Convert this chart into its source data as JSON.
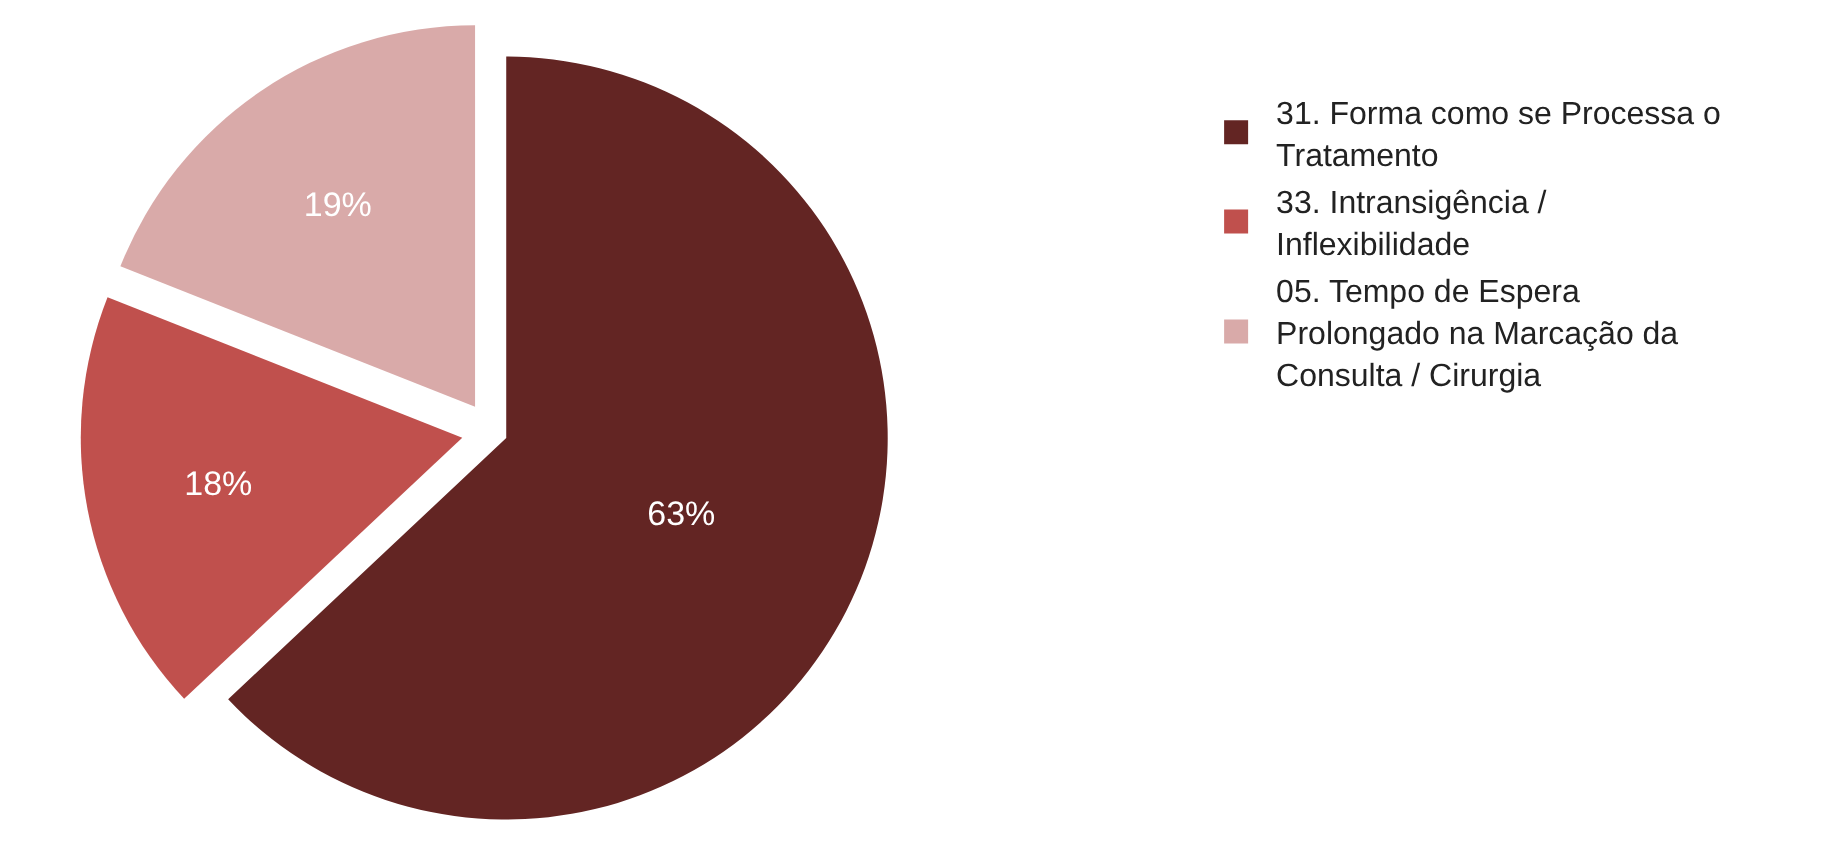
{
  "chart_data": {
    "type": "pie",
    "categories": [
      "31. Forma como se Processa o Tratamento",
      "33. Intransigência / Inflexibilidade",
      "05. Tempo de Espera Prolongado na Marcação da Consulta / Cirurgia"
    ],
    "values": [
      63,
      18,
      19
    ],
    "colors": [
      "#632523",
      "#c0504d",
      "#d9aaa9"
    ],
    "value_labels": [
      "63%",
      "18%",
      "19%"
    ],
    "legend": "right"
  }
}
